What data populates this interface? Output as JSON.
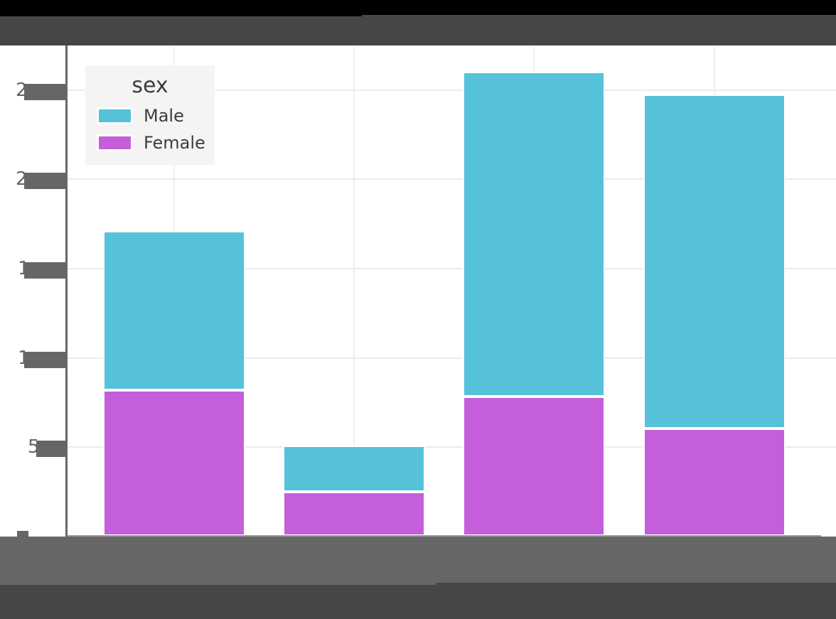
{
  "page": {
    "background_color": "#000000",
    "figure_background": "#ffffff"
  },
  "redactions": {
    "color_dark": "#464646",
    "color_medium": "#666666",
    "covered_regions": [
      "figure-title",
      "y-axis-tick-labels",
      "x-axis-tick-labels",
      "x-axis-title"
    ]
  },
  "legend": {
    "title": "sex",
    "items": [
      {
        "label": "Male",
        "color": "#56c2d9"
      },
      {
        "label": "Female",
        "color": "#c55edb"
      }
    ]
  },
  "y_axis": {
    "visible_digit_fragments": [
      "2",
      "2",
      "1",
      "1",
      "5"
    ],
    "fragment_tick_values": [
      2500,
      2000,
      1500,
      1000,
      500
    ],
    "inferred_tick_values": [
      0,
      500,
      1000,
      1500,
      2000,
      2500
    ]
  },
  "x_axis": {
    "tick_labels": [
      "",
      "",
      "",
      ""
    ]
  },
  "chart_data": {
    "type": "bar",
    "stacked": true,
    "categories": [
      "",
      "",
      "",
      ""
    ],
    "series": [
      {
        "name": "Male",
        "color": "#56c2d9",
        "values": [
          890,
          260,
          1815,
          1870
        ]
      },
      {
        "name": "Female",
        "color": "#c55edb",
        "values": [
          820,
          250,
          785,
          605
        ]
      }
    ],
    "stack_order_bottom_to_top": [
      "Female",
      "Male"
    ],
    "legend_title": "sex",
    "legend_position": "upper-left",
    "title": "",
    "xlabel": "",
    "ylabel": "",
    "ylim": [
      0,
      2750
    ],
    "yticks": [
      0,
      500,
      1000,
      1500,
      2000,
      2500
    ],
    "grid": true,
    "grid_color": "#ebebeb"
  },
  "style": {
    "male_color": "#56c2d9",
    "female_color": "#c55edb",
    "spine_color": "#686868",
    "legend_bg": "#f4f4f4",
    "legend_text_color": "#3d3d3d",
    "tick_label_color": "#666666"
  }
}
